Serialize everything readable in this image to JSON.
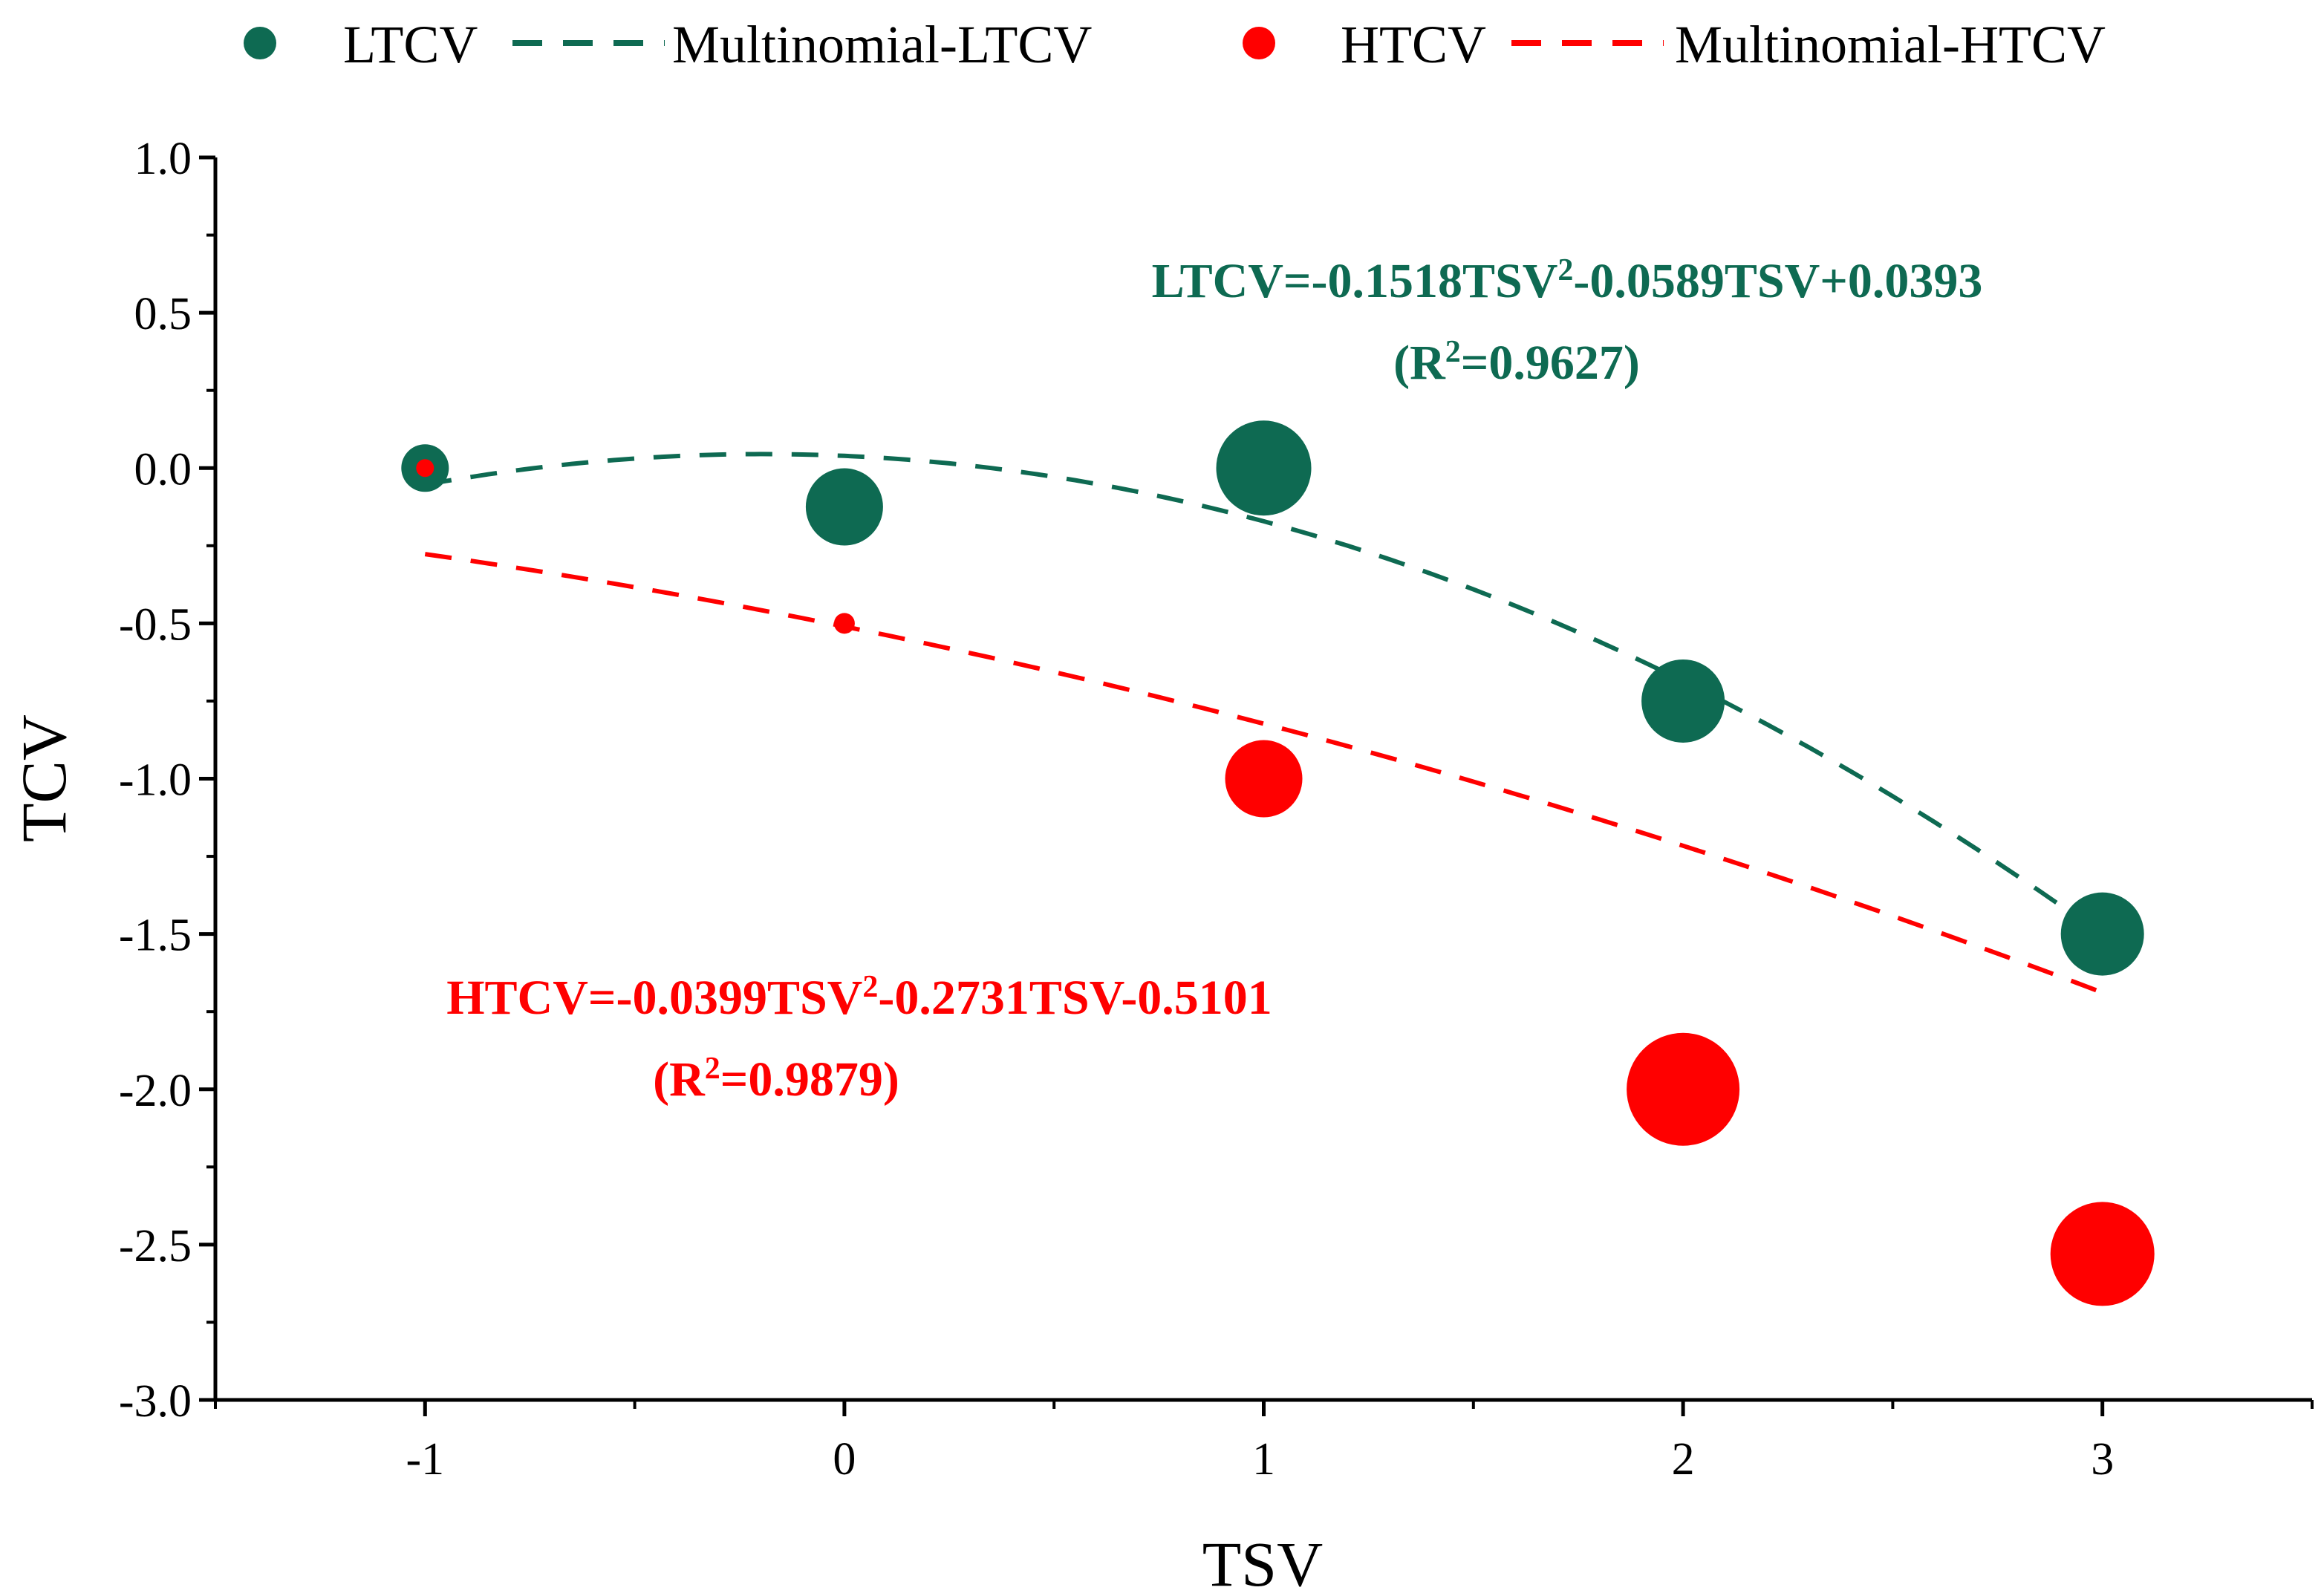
{
  "chart_data": {
    "type": "scatter",
    "xlabel": "TSV",
    "ylabel": "TCV",
    "xlim": [
      -1.5,
      3.5
    ],
    "ylim": [
      -3.0,
      1.0
    ],
    "xticks": [
      -1,
      0,
      1,
      2,
      3
    ],
    "xtick_labels": [
      "-1",
      "0",
      "1",
      "2",
      "3"
    ],
    "yticks": [
      1.0,
      0.5,
      0.0,
      -0.5,
      -1.0,
      -1.5,
      -2.0,
      -2.5,
      -3.0
    ],
    "ytick_labels": [
      "1.0",
      "0.5",
      "0.0",
      "-0.5",
      "-1.0",
      "-1.5",
      "-2.0",
      "-2.5",
      "-3.0"
    ],
    "grid": false,
    "legend_position": "top",
    "legend": [
      {
        "label": "LTCV",
        "kind": "marker",
        "color": "#0e6a52"
      },
      {
        "label": "Multinomial-LTCV",
        "kind": "line",
        "color": "#0e6a52"
      },
      {
        "label": "HTCV",
        "kind": "marker",
        "color": "#ff0000"
      },
      {
        "label": "Multinomial-HTCV",
        "kind": "line",
        "color": "#ff0000"
      }
    ],
    "series": [
      {
        "name": "LTCV",
        "color": "#0e6a52",
        "x": [
          -1,
          0,
          1,
          2,
          3
        ],
        "y": [
          0.0,
          -0.125,
          0.0,
          -0.75,
          -1.5
        ],
        "relative_size": [
          0.8,
          1.3,
          1.6,
          1.4,
          1.4
        ]
      },
      {
        "name": "HTCV",
        "color": "#ff0000",
        "x": [
          -1,
          0,
          1,
          2,
          3
        ],
        "y": [
          0.0,
          -0.5,
          -1.0,
          -2.0,
          -2.53
        ],
        "relative_size": [
          0.3,
          0.35,
          1.3,
          1.9,
          1.75
        ]
      }
    ],
    "fits": [
      {
        "name": "Multinomial-LTCV",
        "color": "#0e6a52",
        "coefficients": {
          "a": -0.1518,
          "b": -0.0589,
          "c": 0.0393
        },
        "x_range": [
          -1,
          3
        ],
        "equation_parts": [
          "LTCV=-0.1518TSV",
          "2",
          "-0.0589TSV+0.0393"
        ],
        "r2_parts": [
          "(R",
          "2",
          "=0.9627)"
        ]
      },
      {
        "name": "Multinomial-HTCV",
        "color": "#ff0000",
        "coefficients": {
          "a": -0.0399,
          "b": -0.2731,
          "c": -0.5101
        },
        "x_range": [
          -1,
          3
        ],
        "equation_parts": [
          "HTCV=-0.0399TSV",
          "2",
          "-0.2731TSV-0.5101"
        ],
        "r2_parts": [
          "(R",
          "2",
          "=0.9879)"
        ]
      }
    ]
  }
}
